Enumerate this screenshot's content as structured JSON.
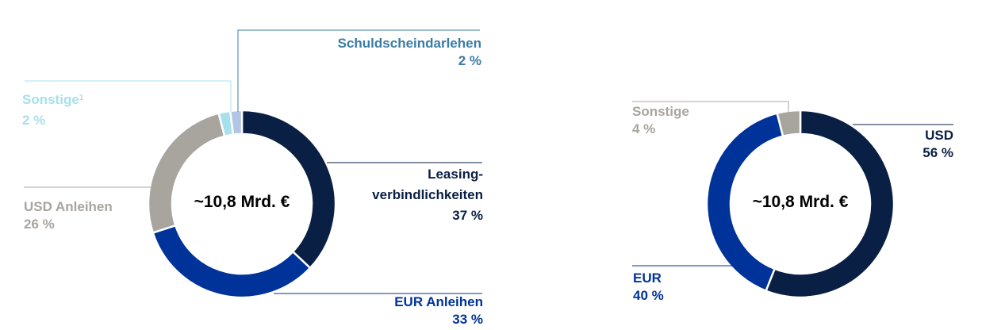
{
  "chart_data": [
    {
      "type": "pie",
      "variant": "donut",
      "center_label": "~10,8 Mrd. €",
      "slices": [
        {
          "label": "Leasing-\nverbindlichkeiten",
          "value": 37,
          "value_label": "37 %",
          "color": "#0a1f44",
          "label_color": "#0a1f44"
        },
        {
          "label": "EUR Anleihen",
          "value": 33,
          "value_label": "33 %",
          "color": "#00339a",
          "label_color": "#00339a"
        },
        {
          "label": "USD Anleihen",
          "value": 26,
          "value_label": "26 %",
          "color": "#a8a49e",
          "label_color": "#a8a49e"
        },
        {
          "label": "Sonstige",
          "footnote": "1",
          "value": 2,
          "value_label": "2 %",
          "color": "#a6e0ec",
          "label_color": "#a6e0ec"
        },
        {
          "label": "Schuldscheindarlehen",
          "value": 2,
          "value_label": "2 %",
          "color": "#b0c6e4",
          "label_color": "#3a7ca5"
        }
      ]
    },
    {
      "type": "pie",
      "variant": "donut",
      "center_label": "~10,8 Mrd. €",
      "slices": [
        {
          "label": "USD",
          "value": 56,
          "value_label": "56 %",
          "color": "#0a1f44",
          "label_color": "#0a1f44"
        },
        {
          "label": "EUR",
          "value": 40,
          "value_label": "40 %",
          "color": "#00339a",
          "label_color": "#00339a"
        },
        {
          "label": "Sonstige",
          "value": 4,
          "value_label": "4 %",
          "color": "#a8a49e",
          "label_color": "#a8a49e"
        }
      ]
    }
  ]
}
